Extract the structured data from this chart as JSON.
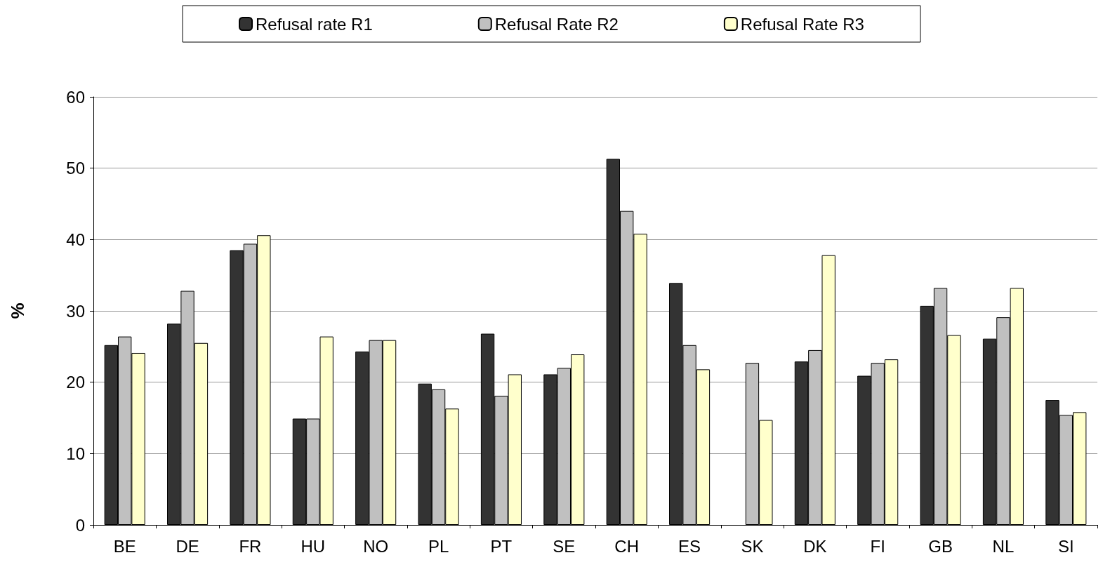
{
  "chart_data": {
    "type": "bar",
    "ylabel": "%",
    "categories": [
      "BE",
      "DE",
      "FR",
      "HU",
      "NO",
      "PL",
      "PT",
      "SE",
      "CH",
      "ES",
      "SK",
      "DK",
      "FI",
      "GB",
      "NL",
      "SI"
    ],
    "series": [
      {
        "name": "Refusal rate R1",
        "color": "#333333",
        "values": [
          25.2,
          28.2,
          38.5,
          14.9,
          24.3,
          19.8,
          26.8,
          21.1,
          51.3,
          33.9,
          null,
          22.9,
          20.9,
          30.7,
          26.1,
          17.5
        ]
      },
      {
        "name": "Refusal Rate R2",
        "color": "#c0c0c0",
        "values": [
          26.4,
          32.8,
          39.4,
          14.9,
          25.9,
          19.0,
          18.1,
          22.0,
          44.0,
          25.2,
          22.7,
          24.5,
          22.7,
          33.2,
          29.1,
          15.4
        ]
      },
      {
        "name": "Refusal Rate R3",
        "color": "#ffffcc",
        "values": [
          24.1,
          25.5,
          40.6,
          26.4,
          25.9,
          16.3,
          21.1,
          23.9,
          40.8,
          21.8,
          14.7,
          37.8,
          23.2,
          26.6,
          33.2,
          15.8
        ]
      }
    ],
    "ylim": [
      0,
      60
    ],
    "yticks": [
      0,
      10,
      20,
      30,
      40,
      50,
      60
    ],
    "grid": "y",
    "legend": "top"
  }
}
